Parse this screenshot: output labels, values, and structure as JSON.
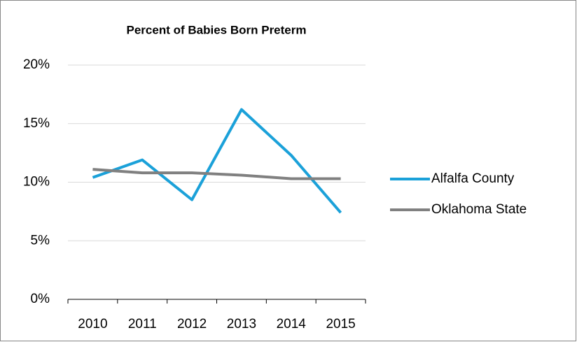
{
  "chart_data": {
    "type": "line",
    "title": "Percent of Babies Born Preterm",
    "categories": [
      "2010",
      "2011",
      "2012",
      "2013",
      "2014",
      "2015"
    ],
    "series": [
      {
        "name": "Alfalfa County",
        "color": "#1ba1d9",
        "values": [
          10.4,
          11.9,
          8.5,
          16.2,
          12.3,
          7.4
        ]
      },
      {
        "name": "Oklahoma State",
        "color": "#808080",
        "values": [
          11.1,
          10.8,
          10.8,
          10.6,
          10.3,
          10.3
        ]
      }
    ],
    "ylim": [
      0,
      20
    ],
    "yticks": [
      {
        "value": 0,
        "label": "0%"
      },
      {
        "value": 5,
        "label": "5%"
      },
      {
        "value": 10,
        "label": "10%"
      },
      {
        "value": 15,
        "label": "15%"
      },
      {
        "value": 20,
        "label": "20%"
      }
    ],
    "grid": true,
    "legend": "right"
  }
}
